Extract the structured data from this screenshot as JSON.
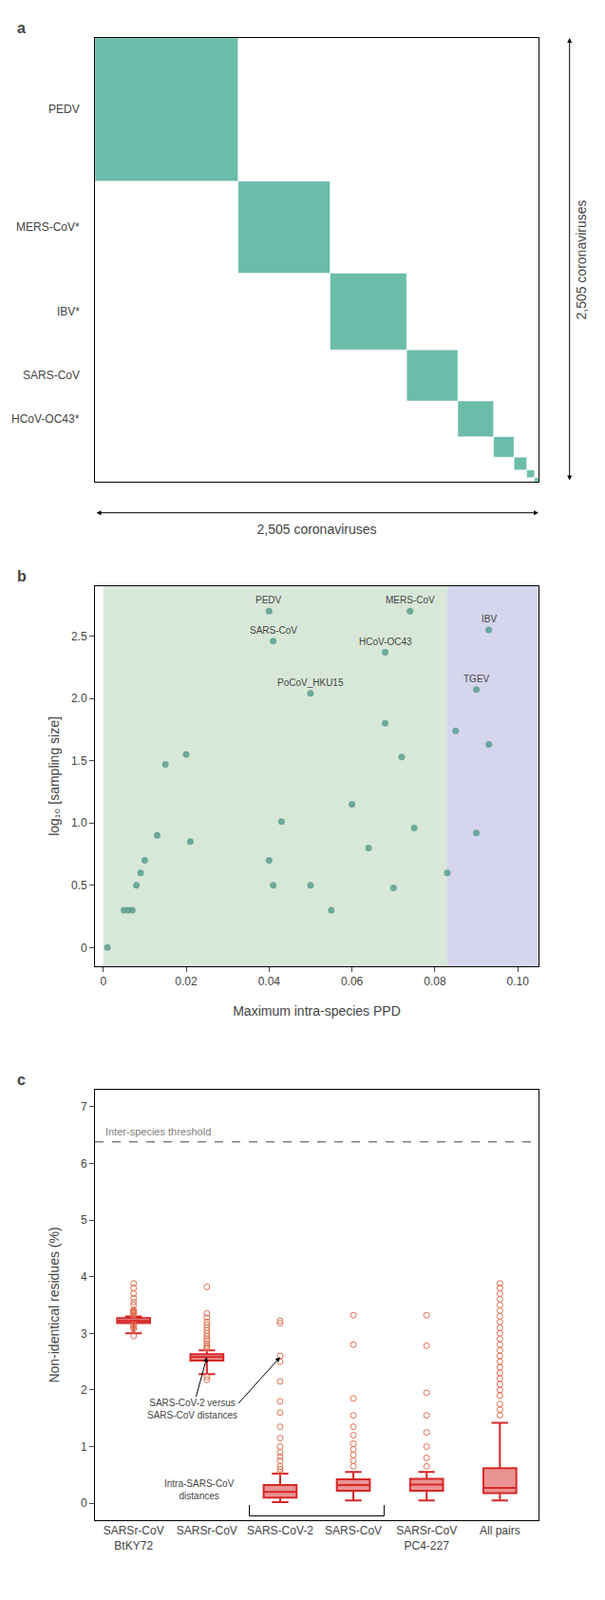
{
  "chart_data": [
    {
      "type": "block_diagram",
      "title": "a",
      "categories": [
        "PEDV",
        "MERS-CoV*",
        "IBV*",
        "SARS-CoV",
        "HCoV-OC43*",
        null,
        null,
        null,
        null
      ],
      "values": [
        0.28,
        0.18,
        0.15,
        0.1,
        0.07,
        0.04,
        0.025,
        0.015,
        0.008
      ],
      "color": "#6CBCAA",
      "xlabel": "2,505 coronaviruses",
      "ylabel": "2,505 coronaviruses",
      "tick_labels": false,
      "grid": false
    },
    {
      "type": "scatter",
      "title": "b",
      "x": [
        0.001,
        0.005,
        0.006,
        0.007,
        0.008,
        0.009,
        0.01,
        0.013,
        0.015,
        0.02,
        0.021,
        0.04,
        0.041,
        0.043,
        0.05,
        0.055,
        0.06,
        0.064,
        0.068,
        0.07,
        0.072,
        0.075,
        0.083,
        0.085,
        0.09,
        0.093
      ],
      "values": [
        0.0,
        0.3,
        0.3,
        0.3,
        0.5,
        0.6,
        0.7,
        0.9,
        1.47,
        1.55,
        0.85,
        0.7,
        0.5,
        1.01,
        0.5,
        0.3,
        1.15,
        0.8,
        1.8,
        0.48,
        1.53,
        0.96,
        0.6,
        1.74,
        0.92,
        1.63
      ],
      "color": "#5A9E8E",
      "annotations": [
        {
          "text": "PEDV",
          "x": 0.04,
          "y": 2.7
        },
        {
          "text": "SARS-CoV",
          "x": 0.041,
          "y": 2.46
        },
        {
          "text": "PoCoV_HKU15",
          "x": 0.05,
          "y": 2.04
        },
        {
          "text": "MERS-CoV",
          "x": 0.074,
          "y": 2.7
        },
        {
          "text": "HCoV-OC43",
          "x": 0.068,
          "y": 2.37
        },
        {
          "text": "IBV",
          "x": 0.093,
          "y": 2.55
        },
        {
          "text": "TGEV",
          "x": 0.09,
          "y": 2.07
        }
      ],
      "regions": [
        {
          "x0": 0.0,
          "x1": 0.083,
          "color": "#8FBC8F"
        },
        {
          "x0": 0.083,
          "x1": 0.105,
          "color": "#8888CC"
        }
      ],
      "xlabel": "Maximum intra-species PPD",
      "ylabel": "log₁₀ [sampling size]",
      "xlim": [
        -0.002,
        0.105
      ],
      "ylim": [
        -0.15,
        2.9
      ],
      "xticks": [
        0,
        0.02,
        0.04,
        0.06,
        0.08,
        {
          "value": 0.1,
          "label": "0.10"
        }
      ],
      "yticks": [
        0,
        0.5,
        {
          "value": 1,
          "label": "1.0"
        },
        1.5,
        {
          "value": 2,
          "label": "2.0"
        },
        2.5
      ],
      "grid": false
    },
    {
      "type": "box",
      "title": "c",
      "categories": [
        "SARSr-CoV\nBtKY72",
        "SARSr-CoV",
        "SARS-CoV-2",
        "SARS-CoV",
        "SARSr-CoV\nPC4-227",
        "All pairs"
      ],
      "boxes": [
        {
          "q1": 3.18,
          "median": 3.22,
          "q3": 3.27,
          "whislo": 3.0,
          "whishi": 3.3,
          "fliers": [
            3.32,
            3.33,
            3.35,
            3.36,
            3.37,
            3.38,
            3.39,
            3.4,
            3.41,
            3.5,
            3.55,
            3.62,
            3.7,
            3.8,
            3.88,
            2.95,
            3.08,
            3.1,
            3.13,
            3.15
          ]
        },
        {
          "q1": 2.52,
          "median": 2.58,
          "q3": 2.63,
          "whislo": 2.28,
          "whishi": 2.7,
          "fliers": [
            2.73,
            2.75,
            2.78,
            2.82,
            2.87,
            2.9,
            2.95,
            3.0,
            3.05,
            3.1,
            3.15,
            3.2,
            3.28,
            3.35,
            3.82,
            2.23,
            2.18
          ]
        },
        {
          "q1": 0.1,
          "median": 0.2,
          "q3": 0.32,
          "whislo": 0.02,
          "whishi": 0.52,
          "fliers": [
            0.65,
            0.75,
            0.82,
            0.9,
            1.0,
            1.15,
            1.35,
            1.6,
            1.8,
            2.15,
            2.5,
            2.6,
            3.22,
            3.18,
            0.55,
            0.6
          ]
        },
        {
          "q1": 0.22,
          "median": 0.32,
          "q3": 0.42,
          "whislo": 0.05,
          "whishi": 0.55,
          "fliers": [
            0.65,
            0.75,
            0.85,
            0.95,
            1.05,
            1.2,
            1.35,
            1.55,
            1.85,
            2.8,
            3.32
          ]
        },
        {
          "q1": 0.22,
          "median": 0.33,
          "q3": 0.43,
          "whislo": 0.05,
          "whishi": 0.55,
          "fliers": [
            0.65,
            0.8,
            1.0,
            1.25,
            1.55,
            1.95,
            2.78,
            3.32
          ]
        },
        {
          "q1": 0.18,
          "median": 0.27,
          "q3": 0.62,
          "whislo": 0.05,
          "whishi": 1.42,
          "fliers": [
            1.55,
            1.65,
            1.75,
            1.9,
            2.0,
            2.1,
            2.2,
            2.3,
            2.4,
            2.5,
            2.6,
            2.7,
            2.8,
            2.9,
            3.0,
            3.1,
            3.2,
            3.3,
            3.4,
            3.5,
            3.6,
            3.7,
            3.8,
            3.88
          ]
        }
      ],
      "color": "#E07050",
      "threshold": {
        "y": 6.38,
        "label": "Inter-species threshold",
        "color": "gray"
      },
      "annotations": [
        {
          "text": "SARS-CoV-2 versus\nSARS-CoV distances",
          "targets": [
            "SARSr-CoV",
            "SARS-CoV-2"
          ]
        },
        {
          "text": "Intra-SARS-CoV\ndistances",
          "span": [
            "SARS-CoV-2",
            "SARS-CoV"
          ]
        }
      ],
      "ylabel": "Non-identical residues (%)",
      "ylim": [
        -0.3,
        7.3
      ],
      "yticks": [
        0,
        1,
        2,
        3,
        4,
        5,
        6,
        7
      ],
      "grid": false
    }
  ]
}
